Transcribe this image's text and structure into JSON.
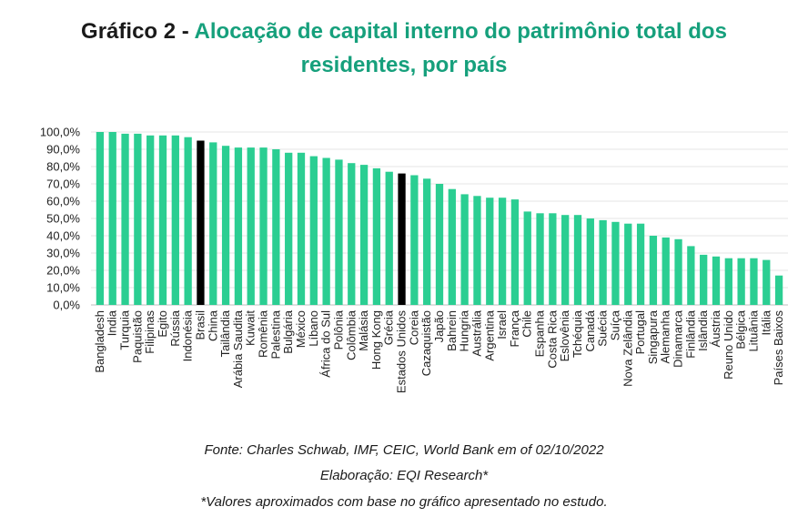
{
  "title": {
    "prefix": "Gráfico 2",
    "separator": " - ",
    "line1": "Alocação de capital interno do patrimônio total dos",
    "line2": "residentes, por país"
  },
  "colors": {
    "bar": "#2bce92",
    "highlight": "#000000",
    "title_accent": "#16a07c",
    "grid": "#e4e4e4"
  },
  "chart_data": {
    "type": "bar",
    "categories": [
      "Bangladesh",
      "India",
      "Turquia",
      "Paquistão",
      "Filipinas",
      "Egito",
      "Rússia",
      "Indonésia",
      "Brasil",
      "China",
      "Tailândia",
      "Arábia Saudita",
      "Kuwait",
      "Romênia",
      "Palestina",
      "Bulgária",
      "México",
      "Líbano",
      "África do Sul",
      "Polônia",
      "Colômbia",
      "Malásia",
      "Hong Kong",
      "Grécia",
      "Estados Unidos",
      "Coreia",
      "Cazaquistão",
      "Japão",
      "Bahrein",
      "Hungria",
      "Austrália",
      "Argentina",
      "Israel",
      "França",
      "Chile",
      "Espanha",
      "Costa Rica",
      "Eslovênia",
      "Tchéquia",
      "Canadá",
      "Suécia",
      "Suíça",
      "Nova Zelândia",
      "Portugal",
      "Singapura",
      "Alemanha",
      "Dinamarca",
      "Finlândia",
      "Islândia",
      "Áustria",
      "Reuno Unido",
      "Bélgica",
      "Lituânia",
      "Itália",
      "Países Baixos"
    ],
    "values": [
      100,
      100,
      99,
      99,
      98,
      98,
      98,
      97,
      95,
      94,
      92,
      91,
      91,
      91,
      90,
      88,
      88,
      86,
      85,
      84,
      82,
      81,
      79,
      77,
      76,
      75,
      73,
      70,
      67,
      64,
      63,
      62,
      62,
      61,
      54,
      53,
      53,
      52,
      52,
      50,
      49,
      48,
      47,
      47,
      40,
      39,
      38,
      34,
      29,
      28,
      27,
      27,
      27,
      26,
      17
    ],
    "highlight": [
      "Brasil",
      "Estados Unidos"
    ],
    "yticks": [
      "0,0%",
      "10,0%",
      "20,0%",
      "30,0%",
      "40,0%",
      "50,0%",
      "60,0%",
      "70,0%",
      "80,0%",
      "90,0%",
      "100,0%"
    ],
    "ylim": [
      0,
      100
    ],
    "grid": true
  },
  "footer": {
    "source": "Fonte: Charles Schwab, IMF, CEIC, World Bank em of 02/10/2022",
    "elaboration": "Elaboração: EQI Research*",
    "note": "*Valores aproximados com base no gráfico apresentado no estudo."
  }
}
